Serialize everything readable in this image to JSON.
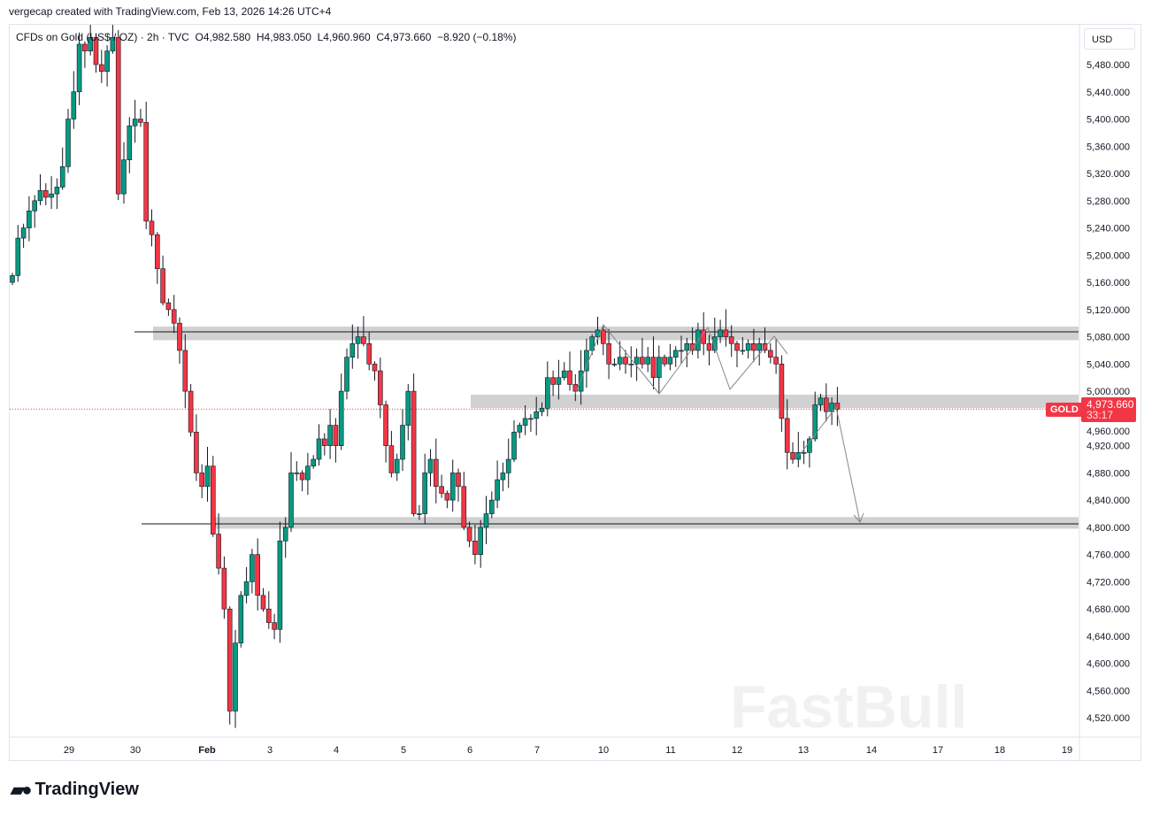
{
  "credit": "vergecap created with TradingView.com, Feb 13, 2026 14:26 UTC+4",
  "legend": {
    "symbol": "CFDs on Gold (US$ / OZ) · 2h · TVC",
    "open": "O4,982.580",
    "high": "H4,983.050",
    "low": "L4,960.960",
    "close": "C4,973.660",
    "change": "−8.920 (−0.18%)"
  },
  "currency": "USD",
  "last_price": {
    "label": "GOLD",
    "price": "4,973.660",
    "countdown": "33:17"
  },
  "watermark": "FastBull",
  "footer_logo": "TradingView",
  "colors": {
    "up": "#089981",
    "down": "#f23645",
    "zone": "#d1d1d1"
  },
  "chart_data": {
    "type": "candlestick",
    "interval": "2h",
    "ylim": [
      4500,
      5520
    ],
    "y_ticks": [
      "5,480.000",
      "5,440.000",
      "5,400.000",
      "5,360.000",
      "5,320.000",
      "5,280.000",
      "5,240.000",
      "5,200.000",
      "5,160.000",
      "5,120.000",
      "5,080.000",
      "5,040.000",
      "5,000.000",
      "4,960.000",
      "4,920.000",
      "4,880.000",
      "4,840.000",
      "4,800.000",
      "4,760.000",
      "4,720.000",
      "4,680.000",
      "4,640.000",
      "4,600.000",
      "4,560.000",
      "4,520.000"
    ],
    "x_ticks": [
      "29",
      "30",
      "Feb",
      "3",
      "4",
      "5",
      "6",
      "7",
      "10",
      "11",
      "12",
      "13",
      "14",
      "17",
      "18",
      "19"
    ],
    "first_open": 5160,
    "closes": [
      5170,
      5225,
      5240,
      5265,
      5280,
      5295,
      5285,
      5290,
      5300,
      5330,
      5400,
      5440,
      5510,
      5500,
      5520,
      5480,
      5470,
      5500,
      5520,
      5290,
      5340,
      5390,
      5400,
      5395,
      5250,
      5230,
      5180,
      5130,
      5120,
      5100,
      5060,
      5000,
      4940,
      4880,
      4860,
      4890,
      4790,
      4740,
      4680,
      4530,
      4630,
      4700,
      4720,
      4760,
      4700,
      4680,
      4660,
      4650,
      4780,
      4800,
      4880,
      4880,
      4870,
      4890,
      4900,
      4930,
      4920,
      4950,
      4920,
      5000,
      5050,
      5070,
      5080,
      5070,
      5040,
      5030,
      4980,
      4920,
      4880,
      4900,
      4950,
      5000,
      4820,
      4820,
      4880,
      4900,
      4860,
      4850,
      4840,
      4880,
      4860,
      4800,
      4780,
      4760,
      4800,
      4820,
      4840,
      4870,
      4880,
      4900,
      4940,
      4950,
      4960,
      4960,
      4970,
      4975,
      5020,
      5010,
      5020,
      5030,
      5010,
      5000,
      5030,
      5060,
      5080,
      5090,
      5070,
      5040,
      5040,
      5050,
      5040,
      5040,
      5050,
      5040,
      5050,
      5020,
      5050,
      5040,
      5050,
      5060,
      5060,
      5070,
      5060,
      5090,
      5070,
      5060,
      5080,
      5090,
      5080,
      5070,
      5060,
      5060,
      5070,
      5060,
      5070,
      5060,
      5050,
      5040,
      4960,
      4910,
      4900,
      4910,
      4910,
      4930,
      4980,
      4990,
      4970,
      4982.58,
      4973.66
    ],
    "last_price": 4973.66,
    "zones": [
      {
        "name": "resistance",
        "low": 5075,
        "high": 5095
      },
      {
        "name": "mid-support",
        "low": 4975,
        "high": 4995
      },
      {
        "name": "support",
        "low": 4798,
        "high": 4815
      }
    ]
  }
}
